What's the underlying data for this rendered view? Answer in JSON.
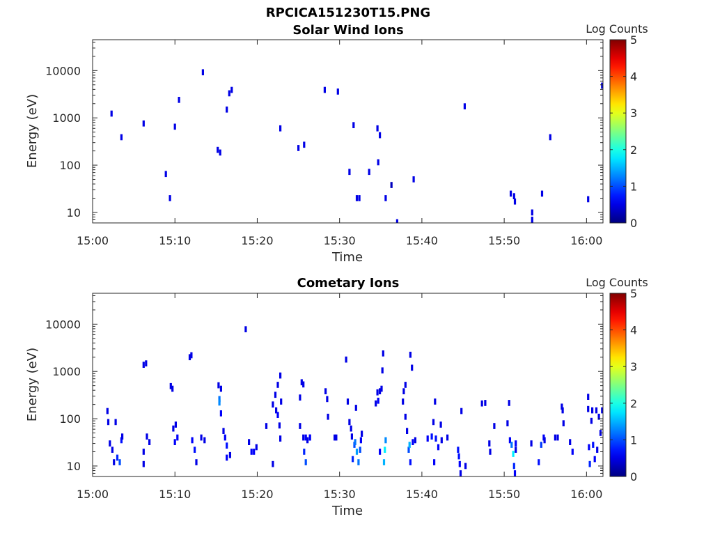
{
  "figure_title": "RPCICA151230T15.PNG",
  "colorbar": {
    "label": "Log Counts",
    "range": [
      0,
      5
    ],
    "ticks": [
      "0",
      "1",
      "2",
      "3",
      "4",
      "5"
    ],
    "colormap": "jet"
  },
  "chart_data": [
    {
      "type": "heatmap",
      "title": "Solar Wind Ions",
      "xlabel": "Time",
      "ylabel": "Energy (eV)",
      "x_unit": "minutes after 15:00",
      "xlim": [
        0,
        62
      ],
      "ylim": [
        6,
        45000
      ],
      "y_scale": "log",
      "x_ticks": [
        "15:00",
        "15:10",
        "15:20",
        "15:30",
        "15:40",
        "15:50",
        "16:00"
      ],
      "y_ticks": [
        "10",
        "100",
        "1000",
        "10000"
      ],
      "points": [
        [
          2.3,
          1230,
          0.5
        ],
        [
          3.5,
          390,
          0.5
        ],
        [
          6.2,
          760,
          0.5
        ],
        [
          8.9,
          65,
          0.5
        ],
        [
          9.4,
          20,
          0.5
        ],
        [
          10.0,
          650,
          0.5
        ],
        [
          10.5,
          2400,
          0.5
        ],
        [
          13.4,
          9200,
          0.5
        ],
        [
          15.2,
          210,
          0.5
        ],
        [
          15.5,
          185,
          0.5
        ],
        [
          16.3,
          1500,
          0.5
        ],
        [
          16.6,
          3300,
          0.5
        ],
        [
          16.9,
          3900,
          0.5
        ],
        [
          22.8,
          600,
          0.5
        ],
        [
          25.0,
          230,
          0.5
        ],
        [
          25.7,
          270,
          0.5
        ],
        [
          28.2,
          3900,
          0.5
        ],
        [
          29.8,
          3600,
          0.5
        ],
        [
          31.2,
          72,
          0.5
        ],
        [
          31.7,
          700,
          0.5
        ],
        [
          32.1,
          20,
          0.5
        ],
        [
          32.4,
          20,
          0.5
        ],
        [
          33.6,
          72,
          0.5
        ],
        [
          34.6,
          600,
          0.5
        ],
        [
          34.7,
          115,
          0.5
        ],
        [
          34.9,
          430,
          0.5
        ],
        [
          35.6,
          20,
          0.5
        ],
        [
          36.3,
          38,
          0.3
        ],
        [
          37.0,
          6.2,
          0.5
        ],
        [
          39.0,
          50,
          0.5
        ],
        [
          45.2,
          1750,
          0.5
        ],
        [
          50.8,
          25,
          0.5
        ],
        [
          51.2,
          22,
          0.5
        ],
        [
          51.3,
          17,
          0.5
        ],
        [
          54.6,
          25,
          0.5
        ],
        [
          53.4,
          10,
          0.5
        ],
        [
          53.4,
          7,
          0.5
        ],
        [
          55.6,
          390,
          0.5
        ],
        [
          60.2,
          19,
          0.5
        ],
        [
          61.9,
          4800,
          0.5
        ]
      ]
    },
    {
      "type": "heatmap",
      "title": "Cometary Ions",
      "xlabel": "Time",
      "ylabel": "Energy (eV)",
      "x_unit": "minutes after 15:00",
      "xlim": [
        0,
        62
      ],
      "ylim": [
        6,
        45000
      ],
      "y_scale": "log",
      "x_ticks": [
        "15:00",
        "15:10",
        "15:20",
        "15:30",
        "15:40",
        "15:50",
        "16:00"
      ],
      "y_ticks": [
        "10",
        "100",
        "1000",
        "10000"
      ],
      "points": [
        [
          1.8,
          145,
          0.5
        ],
        [
          1.9,
          85,
          0.5
        ],
        [
          2.1,
          30,
          0.5
        ],
        [
          2.4,
          22,
          0.5
        ],
        [
          2.6,
          12,
          0.5
        ],
        [
          2.8,
          85,
          0.5
        ],
        [
          3.0,
          15,
          0.8
        ],
        [
          3.3,
          12,
          1.0
        ],
        [
          3.5,
          35,
          0.7
        ],
        [
          3.6,
          42,
          0.5
        ],
        [
          6.2,
          1380,
          0.5
        ],
        [
          6.2,
          20,
          0.5
        ],
        [
          6.2,
          11,
          0.5
        ],
        [
          6.5,
          1480,
          0.5
        ],
        [
          6.6,
          42,
          0.5
        ],
        [
          6.9,
          32,
          0.5
        ],
        [
          9.5,
          490,
          0.5
        ],
        [
          9.7,
          430,
          0.5
        ],
        [
          9.8,
          62,
          0.5
        ],
        [
          10.0,
          32,
          0.6
        ],
        [
          10.1,
          75,
          0.5
        ],
        [
          10.3,
          40,
          0.6
        ],
        [
          11.8,
          2000,
          0.5
        ],
        [
          12.0,
          2200,
          0.5
        ],
        [
          12.1,
          35,
          0.6
        ],
        [
          12.4,
          22,
          0.7
        ],
        [
          12.6,
          12,
          0.5
        ],
        [
          13.2,
          40,
          0.5
        ],
        [
          13.6,
          35,
          0.5
        ],
        [
          15.3,
          510,
          0.5
        ],
        [
          15.4,
          260,
          1.2
        ],
        [
          15.4,
          220,
          1.3
        ],
        [
          15.6,
          130,
          0.6
        ],
        [
          15.6,
          430,
          0.5
        ],
        [
          15.9,
          55,
          0.5
        ],
        [
          16.1,
          40,
          0.6
        ],
        [
          16.3,
          27,
          0.7
        ],
        [
          16.3,
          15,
          0.6
        ],
        [
          16.7,
          17,
          0.5
        ],
        [
          18.6,
          7800,
          0.5
        ],
        [
          19.0,
          32,
          0.5
        ],
        [
          19.3,
          20,
          0.6
        ],
        [
          19.6,
          20,
          0.6
        ],
        [
          19.9,
          25,
          0.5
        ],
        [
          21.1,
          70,
          0.5
        ],
        [
          21.9,
          200,
          0.5
        ],
        [
          21.9,
          11,
          0.5
        ],
        [
          22.2,
          320,
          0.5
        ],
        [
          22.3,
          150,
          0.5
        ],
        [
          22.5,
          520,
          0.5
        ],
        [
          22.5,
          120,
          0.6
        ],
        [
          22.7,
          72,
          0.5
        ],
        [
          22.8,
          820,
          0.5
        ],
        [
          22.8,
          38,
          0.5
        ],
        [
          22.9,
          230,
          0.5
        ],
        [
          25.2,
          70,
          0.5
        ],
        [
          25.2,
          280,
          0.5
        ],
        [
          25.4,
          590,
          0.5
        ],
        [
          25.6,
          40,
          0.5
        ],
        [
          25.6,
          530,
          0.5
        ],
        [
          25.7,
          20,
          0.8
        ],
        [
          25.9,
          12,
          1.0
        ],
        [
          25.9,
          40,
          0.6
        ],
        [
          26.1,
          35,
          0.5
        ],
        [
          26.4,
          40,
          0.6
        ],
        [
          26.4,
          40,
          0.6
        ],
        [
          28.3,
          380,
          0.5
        ],
        [
          28.5,
          260,
          0.5
        ],
        [
          28.6,
          110,
          0.5
        ],
        [
          29.4,
          40,
          0.5
        ],
        [
          29.6,
          40,
          0.5
        ],
        [
          30.8,
          1780,
          0.5
        ],
        [
          31.0,
          230,
          0.5
        ],
        [
          31.2,
          85,
          0.5
        ],
        [
          31.4,
          62,
          0.5
        ],
        [
          31.5,
          42,
          0.5
        ],
        [
          31.6,
          14,
          0.8
        ],
        [
          31.8,
          28,
          1.0
        ],
        [
          31.9,
          32,
          1.2
        ],
        [
          32.0,
          170,
          0.5
        ],
        [
          32.1,
          20,
          1.4
        ],
        [
          32.3,
          12,
          1.2
        ],
        [
          32.5,
          22,
          1.0
        ],
        [
          32.6,
          35,
          0.6
        ],
        [
          32.7,
          48,
          0.5
        ],
        [
          34.4,
          210,
          0.5
        ],
        [
          34.6,
          360,
          0.5
        ],
        [
          34.7,
          240,
          0.6
        ],
        [
          34.9,
          380,
          0.5
        ],
        [
          34.9,
          20,
          0.6
        ],
        [
          35.1,
          430,
          0.5
        ],
        [
          35.2,
          1050,
          0.5
        ],
        [
          35.3,
          2400,
          0.5
        ],
        [
          35.4,
          12,
          1.5
        ],
        [
          35.5,
          22,
          1.8
        ],
        [
          35.6,
          35,
          1.3
        ],
        [
          37.7,
          230,
          0.5
        ],
        [
          37.8,
          380,
          0.5
        ],
        [
          38.0,
          110,
          0.5
        ],
        [
          38.0,
          520,
          0.5
        ],
        [
          38.2,
          55,
          0.5
        ],
        [
          38.4,
          22,
          1.0
        ],
        [
          38.5,
          28,
          1.5
        ],
        [
          38.6,
          2250,
          0.5
        ],
        [
          38.6,
          12,
          0.7
        ],
        [
          38.8,
          1200,
          0.5
        ],
        [
          38.9,
          32,
          0.6
        ],
        [
          39.2,
          35,
          0.5
        ],
        [
          40.7,
          38,
          0.6
        ],
        [
          41.2,
          42,
          0.7
        ],
        [
          41.4,
          85,
          0.5
        ],
        [
          41.5,
          12,
          0.6
        ],
        [
          41.6,
          230,
          0.5
        ],
        [
          41.7,
          38,
          0.7
        ],
        [
          42.0,
          25,
          0.6
        ],
        [
          42.3,
          75,
          0.5
        ],
        [
          42.4,
          35,
          0.5
        ],
        [
          43.1,
          40,
          0.5
        ],
        [
          44.4,
          22,
          0.7
        ],
        [
          44.5,
          16,
          0.7
        ],
        [
          44.6,
          11,
          0.6
        ],
        [
          44.7,
          7,
          0.5
        ],
        [
          44.8,
          145,
          0.5
        ],
        [
          45.3,
          10,
          0.5
        ],
        [
          47.3,
          210,
          0.5
        ],
        [
          47.7,
          215,
          0.5
        ],
        [
          48.3,
          20,
          0.5
        ],
        [
          48.2,
          30,
          0.5
        ],
        [
          48.8,
          70,
          0.5
        ],
        [
          50.4,
          80,
          0.5
        ],
        [
          50.6,
          215,
          0.5
        ],
        [
          50.7,
          35,
          0.6
        ],
        [
          50.9,
          28,
          1.2
        ],
        [
          51.1,
          18,
          1.8
        ],
        [
          51.2,
          10,
          0.8
        ],
        [
          51.3,
          7,
          0.6
        ],
        [
          51.4,
          30,
          0.6
        ],
        [
          51.4,
          22,
          0.5
        ],
        [
          53.3,
          30,
          0.5
        ],
        [
          54.2,
          12,
          0.7
        ],
        [
          54.5,
          28,
          0.9
        ],
        [
          54.8,
          40,
          0.6
        ],
        [
          54.9,
          35,
          0.5
        ],
        [
          56.2,
          40,
          0.5
        ],
        [
          56.5,
          40,
          0.5
        ],
        [
          57.0,
          180,
          0.5
        ],
        [
          57.1,
          150,
          0.5
        ],
        [
          57.2,
          80,
          0.5
        ],
        [
          58.0,
          32,
          0.5
        ],
        [
          58.3,
          20,
          0.6
        ],
        [
          60.2,
          290,
          0.5
        ],
        [
          60.2,
          160,
          0.5
        ],
        [
          60.3,
          25,
          0.6
        ],
        [
          60.4,
          11,
          0.8
        ],
        [
          60.6,
          90,
          0.5
        ],
        [
          60.7,
          150,
          0.5
        ],
        [
          60.8,
          28,
          0.7
        ],
        [
          61.0,
          14,
          0.6
        ],
        [
          61.2,
          150,
          0.5
        ],
        [
          61.3,
          22,
          0.5
        ],
        [
          61.5,
          110,
          0.5
        ],
        [
          61.7,
          50,
          0.5
        ],
        [
          61.9,
          150,
          0.5
        ]
      ]
    }
  ]
}
